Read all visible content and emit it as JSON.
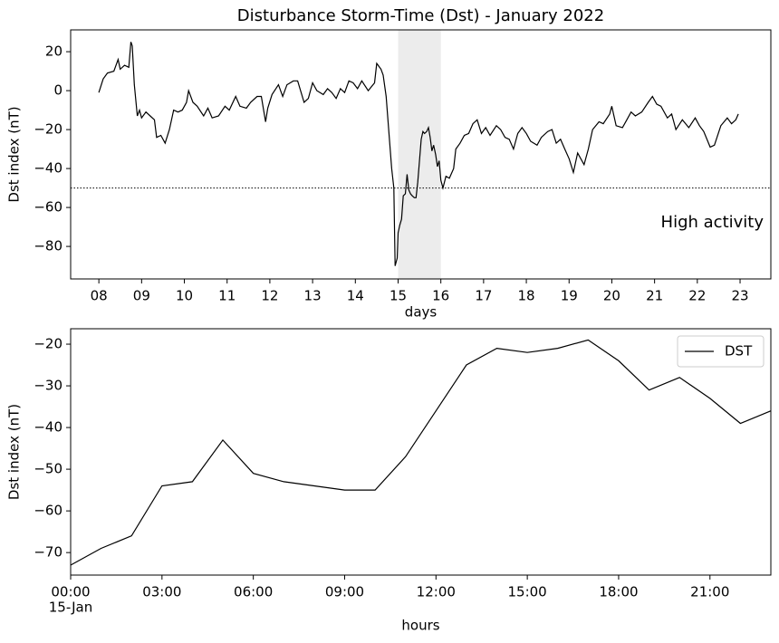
{
  "chart_data": [
    {
      "type": "line",
      "title": "Disturbance Storm-Time (Dst) - January 2022",
      "xlabel": "days",
      "ylabel": "Dst index (nT)",
      "x": [
        8.0,
        8.1,
        8.2,
        8.35,
        8.45,
        8.5,
        8.6,
        8.7,
        8.75,
        8.78,
        8.83,
        8.9,
        8.95,
        9.0,
        9.1,
        9.2,
        9.3,
        9.35,
        9.45,
        9.55,
        9.65,
        9.75,
        9.85,
        9.95,
        10.05,
        10.1,
        10.2,
        10.3,
        10.45,
        10.55,
        10.65,
        10.8,
        10.95,
        11.05,
        11.2,
        11.3,
        11.45,
        11.55,
        11.7,
        11.8,
        11.9,
        11.95,
        12.05,
        12.2,
        12.3,
        12.4,
        12.55,
        12.65,
        12.8,
        12.9,
        13.0,
        13.1,
        13.25,
        13.35,
        13.45,
        13.55,
        13.65,
        13.75,
        13.85,
        13.95,
        14.05,
        14.15,
        14.3,
        14.45,
        14.5,
        14.6,
        14.65,
        14.72,
        14.78,
        14.85,
        14.9,
        14.93,
        14.98,
        15.0,
        15.04,
        15.08,
        15.12,
        15.17,
        15.21,
        15.25,
        15.29,
        15.33,
        15.38,
        15.42,
        15.46,
        15.5,
        15.54,
        15.58,
        15.62,
        15.67,
        15.71,
        15.75,
        15.79,
        15.83,
        15.88,
        15.92,
        15.96,
        16.0,
        16.05,
        16.12,
        16.2,
        16.3,
        16.35,
        16.45,
        16.55,
        16.65,
        16.75,
        16.85,
        16.95,
        17.05,
        17.15,
        17.3,
        17.4,
        17.5,
        17.6,
        17.7,
        17.8,
        17.9,
        18.0,
        18.1,
        18.25,
        18.35,
        18.5,
        18.6,
        18.7,
        18.8,
        18.9,
        19.0,
        19.1,
        19.2,
        19.35,
        19.45,
        19.55,
        19.7,
        19.8,
        19.95,
        20.0,
        20.1,
        20.25,
        20.35,
        20.45,
        20.55,
        20.7,
        20.85,
        20.95,
        21.05,
        21.15,
        21.3,
        21.4,
        21.5,
        21.65,
        21.8,
        21.95,
        22.05,
        22.15,
        22.3,
        22.4,
        22.55,
        22.7,
        22.8,
        22.9,
        22.96
      ],
      "series": [
        {
          "color": "#000000",
          "values": [
            -1,
            6,
            9,
            10,
            16,
            11,
            13,
            12,
            25,
            23,
            3,
            -13,
            -10,
            -14,
            -11,
            -13,
            -15,
            -24,
            -23,
            -27,
            -20,
            -10,
            -11,
            -10,
            -6,
            0,
            -6,
            -8,
            -13,
            -9,
            -14,
            -13,
            -8,
            -10,
            -3,
            -8,
            -9,
            -6,
            -3,
            -3,
            -16,
            -9,
            -2,
            3,
            -3,
            3,
            5,
            5,
            -6,
            -4,
            4,
            0,
            -2,
            1,
            -1,
            -4,
            1,
            -1,
            5,
            4,
            1,
            5,
            0,
            4,
            14,
            11,
            8,
            -3,
            -20,
            -40,
            -50,
            -90,
            -86,
            -73,
            -69,
            -66,
            -54,
            -53,
            -43,
            -51,
            -53,
            -54,
            -55,
            -55,
            -47,
            -36,
            -25,
            -21,
            -22,
            -21,
            -19,
            -24,
            -31,
            -28,
            -33,
            -39,
            -36,
            -46,
            -50,
            -44,
            -45,
            -40,
            -30,
            -27,
            -23,
            -22,
            -17,
            -15,
            -22,
            -19,
            -23,
            -18,
            -20,
            -24,
            -25,
            -30,
            -22,
            -19,
            -22,
            -26,
            -28,
            -24,
            -21,
            -20,
            -27,
            -25,
            -30,
            -35,
            -42,
            -32,
            -38,
            -30,
            -20,
            -16,
            -17,
            -12,
            -8,
            -18,
            -19,
            -15,
            -11,
            -13,
            -11,
            -6,
            -3,
            -7,
            -8,
            -14,
            -12,
            -20,
            -15,
            -19,
            -14,
            -18,
            -21,
            -29,
            -28,
            -18,
            -14,
            -17,
            -15,
            -12
          ]
        }
      ],
      "xlim": [
        7.34,
        23.72
      ],
      "ylim": [
        -96.7,
        31.2
      ],
      "xticks": [
        {
          "value": 8,
          "label": "08"
        },
        {
          "value": 9,
          "label": "09"
        },
        10,
        11,
        12,
        13,
        14,
        15,
        16,
        17,
        18,
        19,
        20,
        21,
        22,
        23
      ],
      "yticks": [
        20,
        0,
        {
          "value": -20,
          "label": "−20"
        },
        {
          "value": -40,
          "label": "−40"
        },
        {
          "value": -60,
          "label": "−60"
        },
        {
          "value": -80,
          "label": "−80"
        }
      ],
      "span": [
        15,
        16
      ],
      "span_color": "#ececec",
      "hline": -50,
      "annotation": "High activity"
    },
    {
      "type": "line",
      "xlabel": "hours",
      "ylabel": "Dst index (nT)",
      "x_date_label": "15-Jan",
      "x": [
        0,
        1,
        2,
        3,
        4,
        5,
        6,
        7,
        8,
        9,
        10,
        11,
        12,
        13,
        14,
        15,
        16,
        17,
        18,
        19,
        20,
        21,
        22,
        23
      ],
      "series": [
        {
          "name": "DST",
          "color": "#000000",
          "values": [
            -73,
            -69,
            -66,
            -54,
            -53,
            -43,
            -51,
            -53,
            -54,
            -55,
            -55,
            -47,
            -36,
            -25,
            -21,
            -22,
            -21,
            -19,
            -24,
            -31,
            -28,
            -33,
            -39,
            -36
          ]
        }
      ],
      "xlim": [
        0,
        23
      ],
      "ylim": [
        -75.4,
        -16.3
      ],
      "xticks": [
        {
          "value": 0,
          "label": "00:00"
        },
        {
          "value": 3,
          "label": "03:00"
        },
        {
          "value": 6,
          "label": "06:00"
        },
        {
          "value": 9,
          "label": "09:00"
        },
        {
          "value": 12,
          "label": "12:00"
        },
        {
          "value": 15,
          "label": "15:00"
        },
        {
          "value": 18,
          "label": "18:00"
        },
        {
          "value": 21,
          "label": "21:00"
        }
      ],
      "yticks": [
        {
          "value": -20,
          "label": "−20"
        },
        {
          "value": -30,
          "label": "−30"
        },
        {
          "value": -40,
          "label": "−40"
        },
        {
          "value": -50,
          "label": "−50"
        },
        {
          "value": -60,
          "label": "−60"
        },
        {
          "value": -70,
          "label": "−70"
        }
      ],
      "legend": "upper right"
    }
  ]
}
